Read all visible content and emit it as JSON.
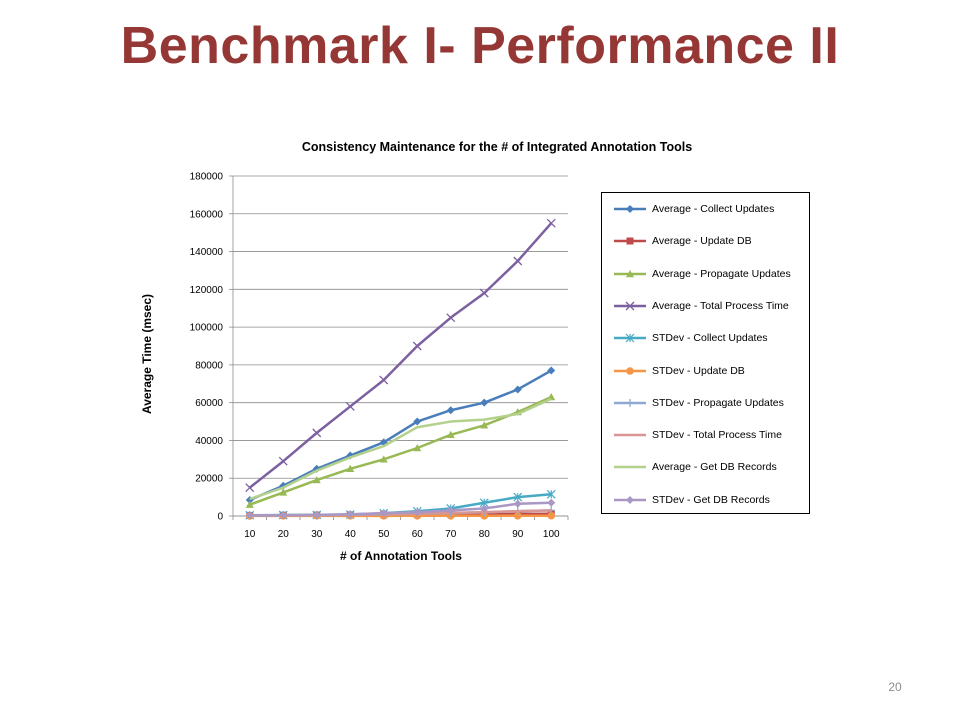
{
  "slide": {
    "title": "Benchmark I- Performance II",
    "page_number": "20"
  },
  "chart_data": {
    "type": "line",
    "title": "Consistency Maintenance for the # of Integrated Annotation Tools",
    "xlabel": "# of Annotation Tools",
    "ylabel": "Average Time  (msec)",
    "x": [
      10,
      20,
      30,
      40,
      50,
      60,
      70,
      80,
      90,
      100
    ],
    "ylim": [
      0,
      180000
    ],
    "yticks": [
      0,
      20000,
      40000,
      60000,
      80000,
      100000,
      120000,
      140000,
      160000,
      180000
    ],
    "grid": "horizontal",
    "legend_position": "right",
    "series": [
      {
        "name": "Average - Collect Updates",
        "color": "#4a7ebb",
        "marker": "diamond",
        "values": [
          8500,
          16000,
          25000,
          32000,
          39000,
          50000,
          56000,
          60000,
          67000,
          77000
        ]
      },
      {
        "name": "Average - Update DB",
        "color": "#be4b48",
        "marker": "square",
        "values": [
          300,
          400,
          500,
          600,
          700,
          800,
          900,
          1000,
          1100,
          1200
        ]
      },
      {
        "name": "Average - Propagate Updates",
        "color": "#98b954",
        "marker": "triangle",
        "values": [
          6000,
          12500,
          19000,
          25000,
          30000,
          36000,
          43000,
          48000,
          55000,
          63000
        ]
      },
      {
        "name": "Average - Total Process Time",
        "color": "#7d60a0",
        "marker": "x",
        "values": [
          15000,
          29000,
          44000,
          58000,
          72000,
          90000,
          105000,
          118000,
          135000,
          155000
        ]
      },
      {
        "name": "STDev - Collect Updates",
        "color": "#46aac5",
        "marker": "star",
        "values": [
          400,
          500,
          600,
          800,
          1500,
          2500,
          4000,
          7000,
          10000,
          11500
        ]
      },
      {
        "name": "STDev - Update DB",
        "color": "#f69546",
        "marker": "circle",
        "values": [
          50,
          60,
          70,
          80,
          90,
          100,
          110,
          120,
          130,
          150
        ]
      },
      {
        "name": "STDev - Propagate Updates",
        "color": "#8ea9cf",
        "marker": "plus",
        "values": [
          200,
          300,
          400,
          600,
          800,
          1200,
          1500,
          2000,
          2500,
          3000
        ]
      },
      {
        "name": "STDev - Total Process Time",
        "color": "#d99694",
        "marker": "none",
        "values": [
          300,
          400,
          500,
          700,
          1000,
          1300,
          1700,
          2000,
          2600,
          3000
        ]
      },
      {
        "name": "Average - Get DB Records",
        "color": "#b3d08c",
        "marker": "none",
        "values": [
          9000,
          15000,
          24000,
          31000,
          37000,
          47000,
          50000,
          51000,
          54000,
          62000
        ]
      },
      {
        "name": "STDev - Get DB Records",
        "color": "#a997c4",
        "marker": "diamond",
        "values": [
          300,
          400,
          600,
          900,
          1500,
          2000,
          3000,
          4000,
          6500,
          7000
        ]
      }
    ]
  }
}
